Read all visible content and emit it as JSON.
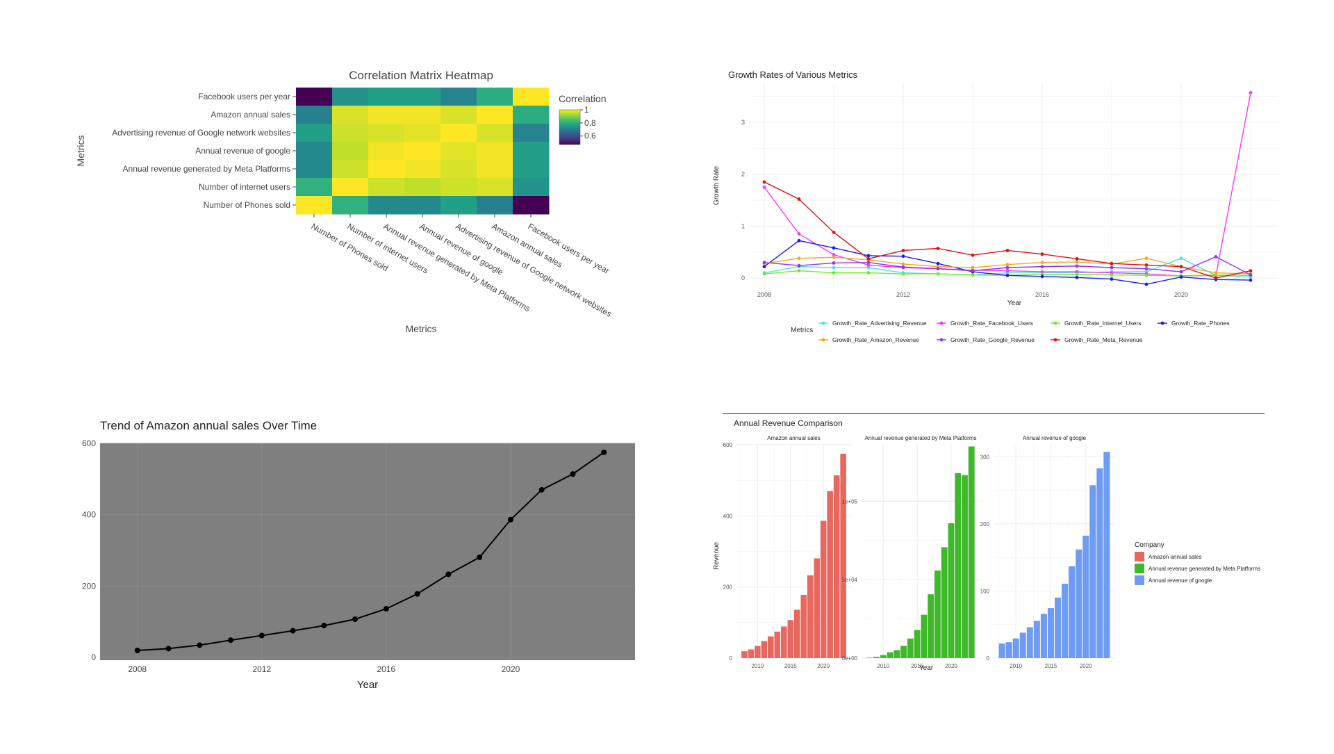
{
  "chart_data": [
    {
      "type": "heatmap",
      "title": "Correlation Matrix Heatmap",
      "xlabel": "Metrics",
      "ylabel": "Metrics",
      "colorbar": {
        "title": "Correlation",
        "ticks": [
          "1",
          "0.8",
          "0.6"
        ]
      },
      "x_labels": [
        "Number of Phones sold",
        "Number of internet users",
        "Annual revenue generated by Meta Platforms",
        "Annual revenue of google",
        "Advertising revenue of Google network websites",
        "Amazon annual sales",
        "Facebook users per year"
      ],
      "y_labels": [
        "Facebook users per year",
        "Amazon annual sales",
        "Advertising revenue of Google network websites",
        "Annual revenue of google",
        "Annual revenue generated by Meta Platforms",
        "Number of internet users",
        "Number of Phones sold"
      ],
      "z": [
        [
          0.47,
          0.74,
          0.77,
          0.77,
          0.71,
          0.8,
          1.0
        ],
        [
          0.7,
          0.97,
          0.99,
          0.99,
          0.97,
          1.0,
          0.8
        ],
        [
          0.77,
          0.96,
          0.97,
          0.98,
          1.0,
          0.97,
          0.71
        ],
        [
          0.72,
          0.95,
          0.99,
          1.0,
          0.98,
          0.99,
          0.77
        ],
        [
          0.72,
          0.96,
          1.0,
          0.99,
          0.97,
          0.99,
          0.77
        ],
        [
          0.81,
          1.0,
          0.96,
          0.95,
          0.96,
          0.97,
          0.74
        ],
        [
          1.0,
          0.81,
          0.72,
          0.72,
          0.77,
          0.7,
          0.47
        ]
      ],
      "zlim": [
        0.47,
        1.0
      ]
    },
    {
      "type": "line",
      "title": "Growth Rates of Various Metrics",
      "xlabel": "Year",
      "ylabel": "Growth Rate",
      "legend_title": "Metrics",
      "legend_position": "bottom",
      "xlim": [
        2007.6,
        2022.8
      ],
      "ylim": [
        -0.2,
        3.75
      ],
      "x_ticks": [
        2008,
        2012,
        2016,
        2020
      ],
      "y_ticks": [
        0,
        1,
        2,
        3
      ],
      "x": [
        2008,
        2009,
        2010,
        2011,
        2012,
        2013,
        2014,
        2015,
        2016,
        2017,
        2018,
        2019,
        2020,
        2021,
        2022
      ],
      "series": [
        {
          "name": "Growth_Rate_Advertising_Revenue",
          "color": "#4fe0e8",
          "values": [
            0.1,
            0.22,
            0.2,
            0.2,
            0.1,
            0.08,
            0.06,
            0.1,
            0.1,
            0.1,
            0.12,
            0.12,
            0.38,
            0.05,
            0.02
          ]
        },
        {
          "name": "Growth_Rate_Facebook_Users",
          "color": "#ff33ff",
          "values": [
            1.75,
            0.85,
            0.45,
            0.25,
            0.2,
            0.18,
            0.15,
            0.14,
            0.12,
            0.12,
            0.1,
            0.08,
            0.04,
            0.05,
            3.57
          ]
        },
        {
          "name": "Growth_Rate_Internet_Users",
          "color": "#66ee22",
          "values": [
            0.08,
            0.14,
            0.1,
            0.1,
            0.08,
            0.08,
            0.06,
            0.05,
            0.07,
            0.07,
            0.06,
            0.05,
            0.04,
            0.06,
            0.05
          ]
        },
        {
          "name": "Growth_Rate_Phones",
          "color": "#1a1aee",
          "values": [
            0.22,
            0.72,
            0.58,
            0.43,
            0.42,
            0.28,
            0.12,
            0.05,
            0.03,
            0.01,
            -0.02,
            -0.12,
            0.02,
            -0.03,
            -0.04
          ]
        },
        {
          "name": "Growth_Rate_Amazon_Revenue",
          "color": "#f5a623",
          "values": [
            0.28,
            0.38,
            0.4,
            0.35,
            0.27,
            0.22,
            0.2,
            0.26,
            0.3,
            0.31,
            0.27,
            0.38,
            0.22,
            0.1,
            0.08
          ]
        },
        {
          "name": "Growth_Rate_Google_Revenue",
          "color": "#9933ee",
          "values": [
            0.3,
            0.24,
            0.29,
            0.3,
            0.21,
            0.18,
            0.14,
            0.2,
            0.22,
            0.23,
            0.2,
            0.18,
            0.12,
            0.41,
            0.06
          ]
        },
        {
          "name": "Growth_Rate_Meta_Revenue",
          "color": "#dd1111",
          "values": [
            1.85,
            1.52,
            0.88,
            0.37,
            0.53,
            0.57,
            0.44,
            0.53,
            0.46,
            0.37,
            0.28,
            0.25,
            0.22,
            0.0,
            0.14
          ]
        }
      ]
    },
    {
      "type": "line",
      "title": "Trend of Amazon annual sales Over Time",
      "xlabel": "Year",
      "ylabel": "",
      "xlim": [
        2006.8,
        2024.0
      ],
      "ylim": [
        -8,
        600
      ],
      "x_ticks": [
        2008,
        2012,
        2016,
        2020
      ],
      "y_ticks": [
        0,
        200,
        400,
        600
      ],
      "x": [
        2008,
        2009,
        2010,
        2011,
        2012,
        2013,
        2014,
        2015,
        2016,
        2017,
        2018,
        2019,
        2020,
        2021,
        2022,
        2023
      ],
      "values": [
        19.2,
        24.5,
        34.2,
        48.1,
        61.1,
        74.5,
        89.0,
        107.0,
        136.0,
        177.9,
        232.9,
        280.5,
        386.1,
        469.8,
        514.0,
        574.8
      ]
    },
    {
      "type": "bar",
      "title": "Annual Revenue Comparison",
      "xlabel": "Year",
      "ylabel": "Revenue",
      "legend_title": "Company",
      "legend_position": "right",
      "x": [
        2008,
        2009,
        2010,
        2011,
        2012,
        2013,
        2014,
        2015,
        2016,
        2017,
        2018,
        2019,
        2020,
        2021,
        2022,
        2023
      ],
      "facets": [
        {
          "name": "Amazon annual sales",
          "color": "#e8685f",
          "ylim": [
            0,
            600
          ],
          "y_ticks": [
            0,
            200,
            400,
            600
          ],
          "y_tick_labels": [
            "0",
            "200",
            "400",
            "600"
          ],
          "values": [
            19.2,
            24.5,
            34.2,
            48.1,
            61.1,
            74.5,
            89.0,
            107.0,
            136.0,
            177.9,
            232.9,
            280.5,
            386.1,
            469.8,
            514.0,
            574.8
          ]
        },
        {
          "name": "Annual revenue generated by Meta Platforms",
          "color": "#3fb82a",
          "ylim": [
            0,
            136000
          ],
          "y_ticks": [
            0,
            50000,
            100000
          ],
          "y_tick_labels": [
            "0e+00",
            "5e+04",
            "1e+05"
          ],
          "values": [
            272,
            777,
            1974,
            3711,
            5089,
            7872,
            12466,
            17928,
            27638,
            40653,
            55838,
            70697,
            85965,
            117929,
            116609,
            134902
          ]
        },
        {
          "name": "Annual revenue of google",
          "color": "#6e9cf5",
          "ylim": [
            0,
            318
          ],
          "y_ticks": [
            0,
            100,
            200,
            300
          ],
          "y_tick_labels": [
            "0",
            "100",
            "200",
            "300"
          ],
          "values": [
            21.8,
            23.7,
            29.3,
            37.9,
            46.0,
            55.5,
            66.0,
            74.5,
            90.3,
            110.9,
            136.8,
            161.9,
            182.5,
            257.6,
            282.8,
            307.4
          ]
        }
      ],
      "x_ticks": [
        2010,
        2015,
        2020
      ]
    }
  ]
}
